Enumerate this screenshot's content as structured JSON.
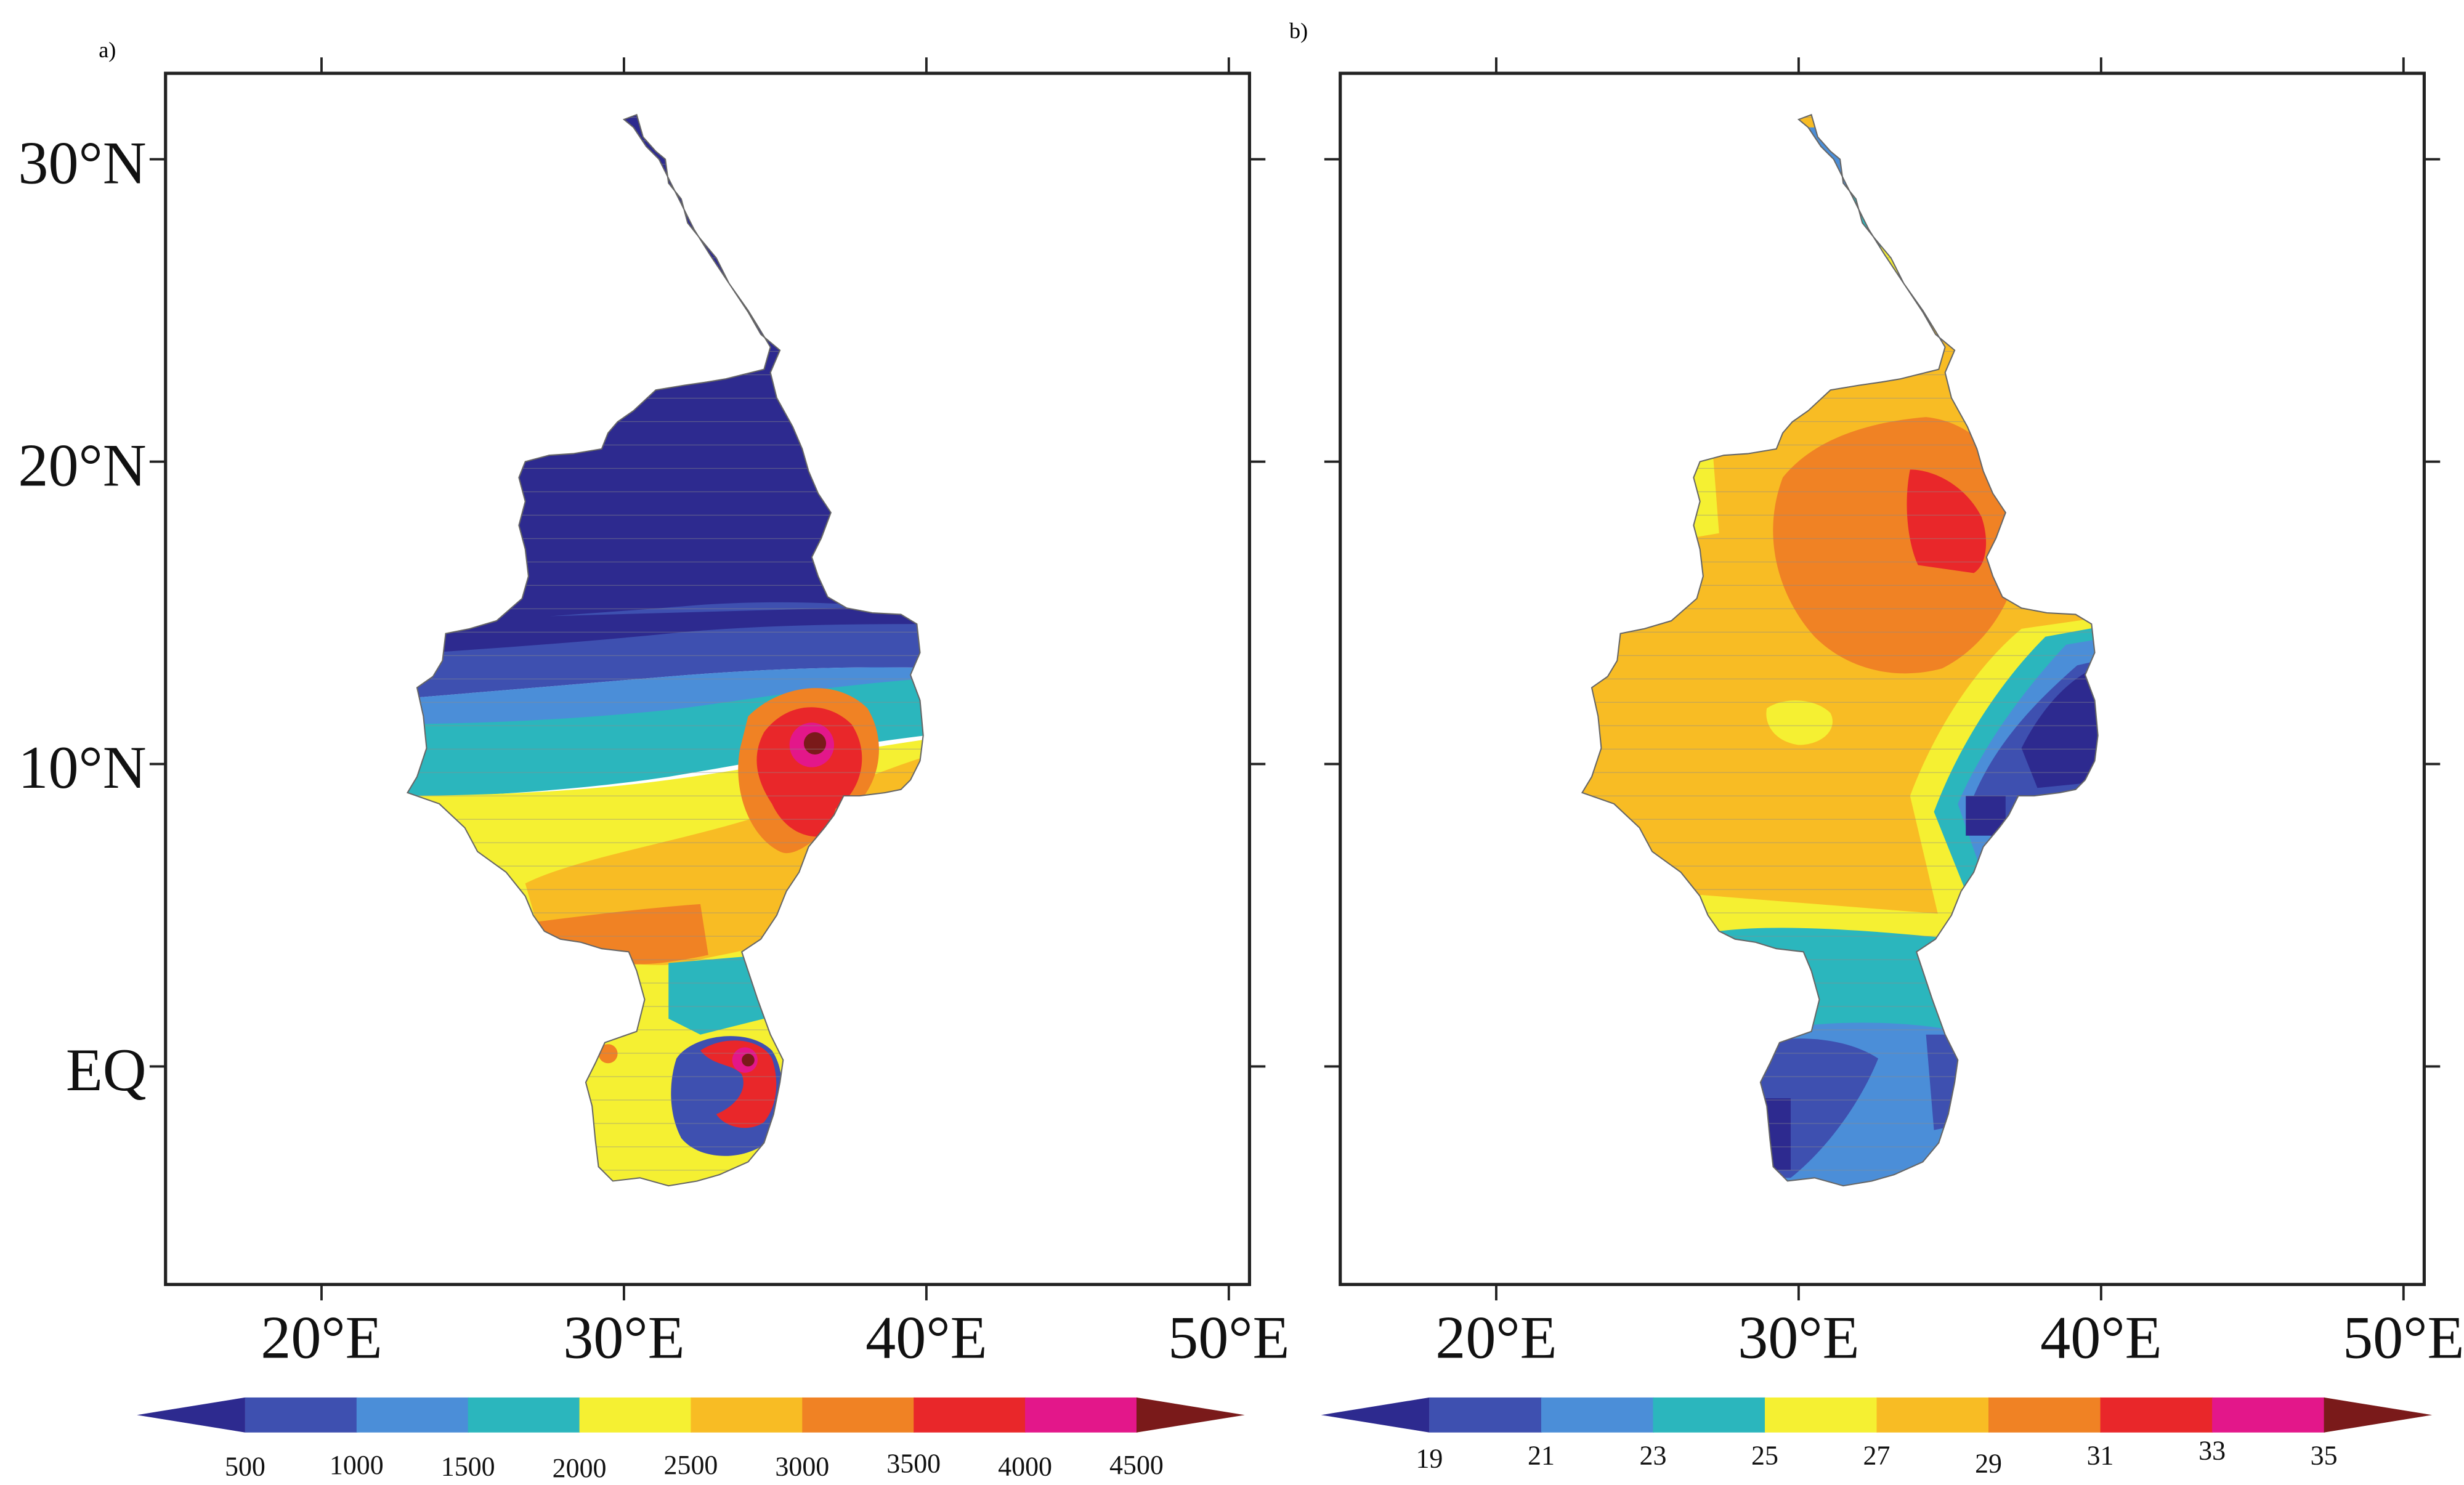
{
  "panels": [
    {
      "label": "a)",
      "lat_labels": [
        "30°N",
        "20°N",
        "10°N",
        "EQ"
      ],
      "lon_labels": [
        "20°E",
        "30°E",
        "40°E",
        "50°E"
      ],
      "colorbar": {
        "tick_labels": [
          "500",
          "1000",
          "1500",
          "2000",
          "2500",
          "3000",
          "3500",
          "4000",
          "4500"
        ],
        "colors": [
          "#2d2a8f",
          "#3e50b0",
          "#4b8ed8",
          "#2bb6bd",
          "#f5f032",
          "#f8bc24",
          "#f08224",
          "#e9272a",
          "#e3178a",
          "#7a1a1a"
        ]
      },
      "map": {
        "domain": {
          "lon": [
            15,
            51
          ],
          "lat": [
            -7.5,
            31.5
          ]
        },
        "hatched": true,
        "field": [
          {
            "color": "#2d2a8f",
            "region": "north of ~14°N"
          },
          {
            "color": "#3e50b0",
            "region": "12–14°N band"
          },
          {
            "color": "#2bb6bd",
            "region": "10–12°N band"
          },
          {
            "color": "#f5f032",
            "region": "south-west 5–10°N"
          },
          {
            "color": "#f8bc24",
            "region": "central 5–10°N"
          },
          {
            "color": "#e9272a",
            "region": "Ethiopian highlands ~35°E 8–12°N"
          },
          {
            "color": "#7a1a1a",
            "region": "maximum ~36.5°E 11°N"
          }
        ]
      }
    },
    {
      "label": "b)",
      "lat_labels": [
        "",
        "",
        "",
        ""
      ],
      "lon_labels": [
        "20°E",
        "30°E",
        "40°E",
        "50°E"
      ],
      "colorbar": {
        "tick_labels": [
          "19",
          "21",
          "23",
          "25",
          "27",
          "29",
          "31",
          "33",
          "35"
        ],
        "colors": [
          "#2d2a8f",
          "#3e50b0",
          "#4b8ed8",
          "#2bb6bd",
          "#f5f032",
          "#f8bc24",
          "#f08224",
          "#e9272a",
          "#e3178a",
          "#7a1a1a"
        ]
      },
      "map": {
        "domain": {
          "lon": [
            15,
            51
          ],
          "lat": [
            -7.5,
            31.5
          ]
        },
        "hatched": true,
        "field": [
          {
            "color": "#f8bc24",
            "region": "most of basin 6–25°N"
          },
          {
            "color": "#f08224",
            "region": "central Sudan 13–21°N"
          },
          {
            "color": "#e9272a",
            "region": "maximum ~35°E 17–20°N"
          },
          {
            "color": "#2d2a8f",
            "region": "Ethiopian highlands ~38°E"
          },
          {
            "color": "#2bb6bd",
            "region": "south 1–5°N"
          },
          {
            "color": "#3e50b0",
            "region": "Lake Victoria region"
          }
        ]
      }
    }
  ]
}
